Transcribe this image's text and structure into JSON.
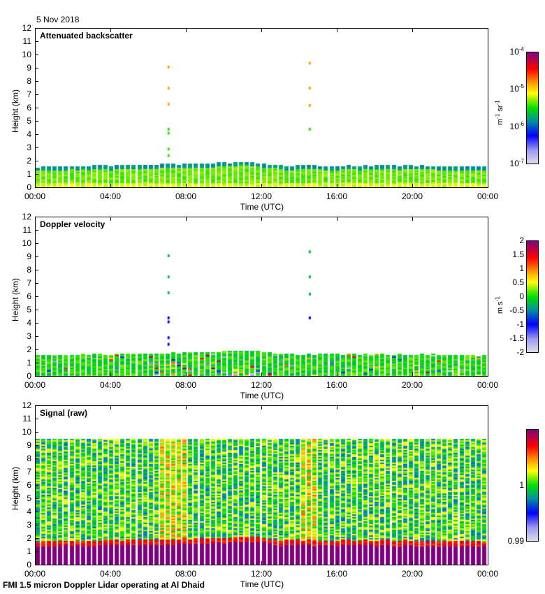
{
  "date": "5 Nov 2018",
  "footer": "FMI 1.5 micron Doppler Lidar operating at Al Dhaid",
  "chart_data": [
    {
      "type": "heatmap",
      "title": "Attenuated backscatter",
      "xlabel": "Time (UTC)",
      "ylabel": "Height (km)",
      "xticks": [
        "00:00",
        "04:00",
        "08:00",
        "12:00",
        "16:00",
        "20:00",
        "00:00"
      ],
      "yticks": [
        "0",
        "1",
        "2",
        "3",
        "4",
        "5",
        "6",
        "7",
        "8",
        "9",
        "10",
        "11",
        "12"
      ],
      "ylim": [
        0,
        12
      ],
      "xlim_hours": [
        0,
        24
      ],
      "colorbar": {
        "unit": "m-1 sr-1",
        "scale": "log",
        "range": [
          1e-07,
          0.0001
        ],
        "ticks": [
          "10-7",
          "10-6",
          "10-5",
          "10-4"
        ],
        "tick_base": "10",
        "tick_exps": [
          "-7",
          "-6",
          "-5",
          "-4"
        ],
        "unit_parts": [
          "m",
          "-1",
          " sr",
          "-1"
        ]
      },
      "layer_top_km": {
        "hours": [
          0,
          4,
          8,
          10,
          11,
          12,
          13,
          16,
          20,
          24
        ],
        "values": [
          1.5,
          1.6,
          1.7,
          1.8,
          1.9,
          1.8,
          1.6,
          1.6,
          1.6,
          1.5
        ]
      },
      "sparse_returns": [
        {
          "hour": 7.0,
          "heights_km": [
            2.5,
            3.0,
            4.2,
            4.5,
            7.6,
            9.2,
            6.4
          ]
        },
        {
          "hour": 14.5,
          "heights_km": [
            9.5,
            7.6,
            6.3,
            4.5
          ]
        }
      ]
    },
    {
      "type": "heatmap",
      "title": "Doppler velocity",
      "xlabel": "Time (UTC)",
      "ylabel": "Height (km)",
      "xticks": [
        "00:00",
        "04:00",
        "08:00",
        "12:00",
        "16:00",
        "20:00",
        "00:00"
      ],
      "yticks": [
        "0",
        "1",
        "2",
        "3",
        "4",
        "5",
        "6",
        "7",
        "8",
        "9",
        "10",
        "11",
        "12"
      ],
      "ylim": [
        0,
        12
      ],
      "colorbar": {
        "unit": "m s-1",
        "unit_parts": [
          "m s",
          "-1"
        ],
        "range": [
          -2,
          2
        ],
        "ticks": [
          "-2",
          "-1.5",
          "-1",
          "-0.5",
          "0",
          "0.5",
          "1",
          "1.5",
          "2"
        ]
      }
    },
    {
      "type": "heatmap",
      "title": "Signal (raw)",
      "xlabel": "Time (UTC)",
      "ylabel": "Height (km)",
      "xticks": [
        "00:00",
        "04:00",
        "08:00",
        "12:00",
        "16:00",
        "20:00",
        "00:00"
      ],
      "yticks": [
        "0",
        "1",
        "2",
        "3",
        "4",
        "5",
        "6",
        "7",
        "8",
        "9",
        "10",
        "11",
        "12"
      ],
      "ylim": [
        0,
        12
      ],
      "max_range_km": 9.5,
      "colorbar": {
        "unit": "",
        "range": [
          0.99,
          1.01
        ],
        "ticks": [
          "0.99",
          "1"
        ]
      }
    }
  ]
}
